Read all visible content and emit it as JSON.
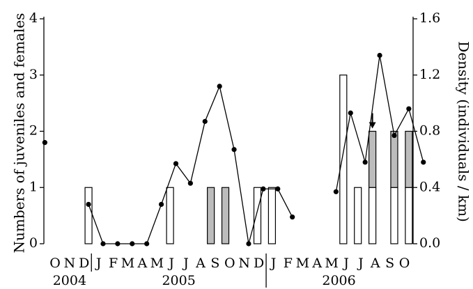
{
  "chart_data": {
    "type": "bar+line",
    "ylabel_left": "Numbers of juveniles and females",
    "ylabel_right": "Density (individuals / km)",
    "y_left_ticks": [
      "0",
      "1",
      "2",
      "3",
      "4"
    ],
    "y_right_ticks": [
      "0.0",
      "0.4",
      "0.8",
      "1.2",
      "1.6"
    ],
    "ylim_left": [
      0,
      4
    ],
    "ylim_right": [
      0,
      1.6
    ],
    "months": [
      "O",
      "N",
      "D",
      "J",
      "F",
      "M",
      "A",
      "M",
      "J",
      "J",
      "A",
      "S",
      "O",
      "N",
      "D",
      "J",
      "F",
      "M",
      "A",
      "M",
      "J",
      "J",
      "A",
      "S",
      "O"
    ],
    "years": [
      {
        "label": "2004",
        "start": 0,
        "end": 2
      },
      {
        "label": "2005",
        "start": 3,
        "end": 14
      },
      {
        "label": "2006",
        "start": 15,
        "end": 24
      }
    ],
    "series": [
      {
        "name": "juveniles",
        "style": "open-bar",
        "points": [
          {
            "x": 2.3,
            "value": 1
          },
          {
            "x": 7.9,
            "value": 1
          },
          {
            "x": 13.9,
            "value": 1
          },
          {
            "x": 14.9,
            "value": 1
          },
          {
            "x": 19.8,
            "value": 3
          },
          {
            "x": 20.8,
            "value": 1
          },
          {
            "x": 21.8,
            "value": 1
          },
          {
            "x": 23.3,
            "value": 1
          },
          {
            "x": 24.3,
            "value": 1
          }
        ]
      },
      {
        "name": "females",
        "style": "grey-bar",
        "points": [
          {
            "x": 10.7,
            "value": 1
          },
          {
            "x": 11.7,
            "value": 1
          },
          {
            "x": 21.8,
            "value": 1
          },
          {
            "x": 23.3,
            "value": 1
          },
          {
            "x": 24.3,
            "value": 1
          }
        ]
      },
      {
        "name": "density",
        "style": "line-dots",
        "axis": "right",
        "segments": [
          [
            {
              "x": -0.7,
              "y": 0.72
            }
          ],
          [
            {
              "x": 2.3,
              "y": 0.28
            },
            {
              "x": 3.3,
              "y": 0.0
            },
            {
              "x": 4.3,
              "y": 0.0
            },
            {
              "x": 5.3,
              "y": 0.0
            },
            {
              "x": 6.3,
              "y": 0.0
            },
            {
              "x": 7.3,
              "y": 0.28
            },
            {
              "x": 8.3,
              "y": 0.57
            },
            {
              "x": 9.3,
              "y": 0.43
            },
            {
              "x": 10.3,
              "y": 0.87
            },
            {
              "x": 11.3,
              "y": 1.12
            },
            {
              "x": 12.3,
              "y": 0.67
            },
            {
              "x": 13.3,
              "y": 0.0
            },
            {
              "x": 14.3,
              "y": 0.39
            },
            {
              "x": 15.3,
              "y": 0.39
            },
            {
              "x": 16.3,
              "y": 0.19
            }
          ],
          [
            {
              "x": 19.3,
              "y": 0.37
            },
            {
              "x": 20.3,
              "y": 0.93
            },
            {
              "x": 21.3,
              "y": 0.58
            },
            {
              "x": 22.3,
              "y": 1.34
            },
            {
              "x": 23.3,
              "y": 0.77
            },
            {
              "x": 24.3,
              "y": 0.96
            },
            {
              "x": 25.3,
              "y": 0.58
            }
          ]
        ]
      }
    ],
    "annotation": {
      "type": "down-arrow",
      "x": 21.8
    },
    "grid": false
  }
}
